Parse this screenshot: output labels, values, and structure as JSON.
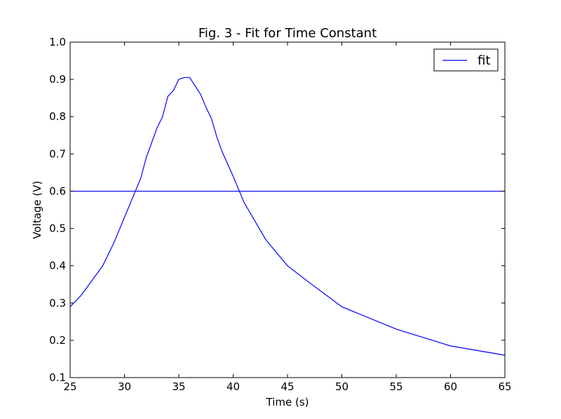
{
  "chart_data": {
    "type": "line",
    "title": "Fig. 3 - Fit for Time Constant",
    "xlabel": "Time (s)",
    "ylabel": "Voltage (V)",
    "xlim": [
      25,
      65
    ],
    "ylim": [
      0.1,
      1.0
    ],
    "xticks": [
      "25",
      "30",
      "35",
      "40",
      "45",
      "50",
      "55",
      "60",
      "65"
    ],
    "yticks": [
      "0.1",
      "0.2",
      "0.3",
      "0.4",
      "0.5",
      "0.6",
      "0.7",
      "0.8",
      "0.9",
      "1.0"
    ],
    "grid": false,
    "legend": {
      "placement": "top-right",
      "entries": [
        "fit"
      ]
    },
    "line_color": "#0000ff",
    "series": [
      {
        "name": "fit",
        "x": [
          25,
          26,
          27,
          28,
          29,
          30,
          31,
          31.5,
          32,
          33,
          33.5,
          34,
          34.5,
          35,
          35.5,
          36,
          37,
          37.5,
          38,
          38.5,
          39,
          40,
          41,
          42,
          43,
          44,
          45,
          47,
          50,
          55,
          60,
          65
        ],
        "y": [
          0.29,
          0.32,
          0.36,
          0.4,
          0.46,
          0.53,
          0.6,
          0.635,
          0.69,
          0.77,
          0.8,
          0.855,
          0.87,
          0.9,
          0.905,
          0.905,
          0.86,
          0.825,
          0.795,
          0.745,
          0.705,
          0.64,
          0.57,
          0.52,
          0.47,
          0.435,
          0.4,
          0.355,
          0.29,
          0.23,
          0.185,
          0.16
        ]
      },
      {
        "name": "",
        "x": [
          25,
          65
        ],
        "y": [
          0.6,
          0.6
        ]
      }
    ]
  }
}
